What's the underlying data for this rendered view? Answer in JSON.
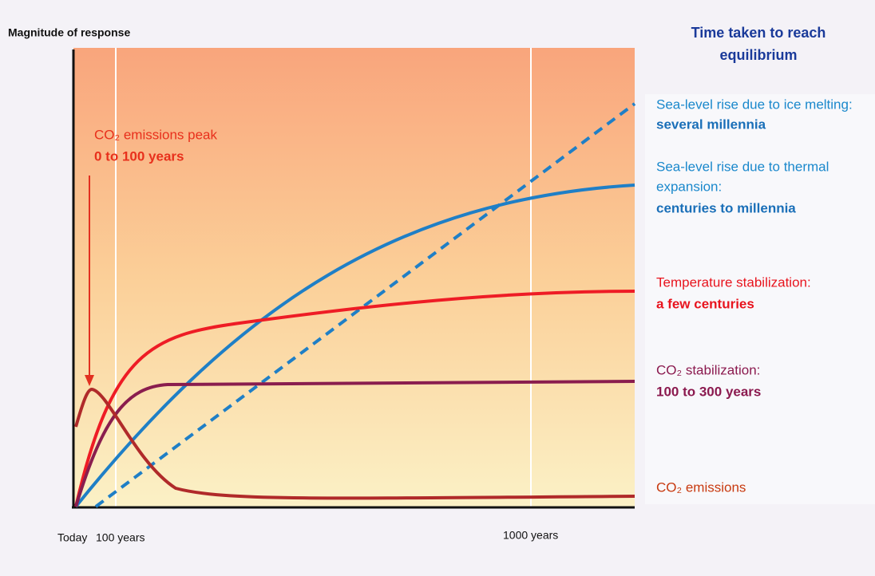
{
  "header": {
    "y_axis_label": "Magnitude of response",
    "panel_title": [
      "Time taken to reach",
      "equilibrium"
    ]
  },
  "annotation": {
    "label": "CO₂ emissions peak",
    "detail": "0 to 100 years"
  },
  "x_labels": [
    "Today",
    "100 years",
    "1000 years"
  ],
  "legend": [
    {
      "label": "Sea-level rise due to ice melting:",
      "detail": "several millennia"
    },
    {
      "label": [
        "Sea-level rise due to thermal",
        "expansion:"
      ],
      "detail": "centuries to millennia"
    },
    {
      "label": "Temperature stabilization:",
      "detail": "a few centuries"
    },
    {
      "label": "CO₂ stabilization:",
      "detail": "100 to 300 years"
    },
    {
      "label": "CO₂ emissions"
    }
  ]
}
